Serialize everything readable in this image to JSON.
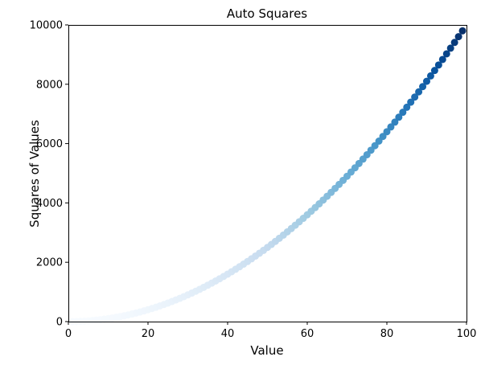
{
  "chart_data": {
    "type": "scatter",
    "title": "Auto Squares",
    "xlabel": "Value",
    "ylabel": "Squares of Values",
    "xlim": [
      0,
      100
    ],
    "ylim": [
      0,
      10000
    ],
    "x_ticks": [
      0,
      20,
      40,
      60,
      80,
      100
    ],
    "y_ticks": [
      0,
      2000,
      4000,
      6000,
      8000,
      10000
    ],
    "grid": false,
    "colormap": "Blues",
    "colormap_light": "#f7fbff",
    "colormap_dark": "#08306b",
    "colors_by": "y",
    "x": [
      1,
      2,
      3,
      4,
      5,
      6,
      7,
      8,
      9,
      10,
      11,
      12,
      13,
      14,
      15,
      16,
      17,
      18,
      19,
      20,
      21,
      22,
      23,
      24,
      25,
      26,
      27,
      28,
      29,
      30,
      31,
      32,
      33,
      34,
      35,
      36,
      37,
      38,
      39,
      40,
      41,
      42,
      43,
      44,
      45,
      46,
      47,
      48,
      49,
      50,
      51,
      52,
      53,
      54,
      55,
      56,
      57,
      58,
      59,
      60,
      61,
      62,
      63,
      64,
      65,
      66,
      67,
      68,
      69,
      70,
      71,
      72,
      73,
      74,
      75,
      76,
      77,
      78,
      79,
      80,
      81,
      82,
      83,
      84,
      85,
      86,
      87,
      88,
      89,
      90,
      91,
      92,
      93,
      94,
      95,
      96,
      97,
      98,
      99
    ],
    "y": [
      1,
      4,
      9,
      16,
      25,
      36,
      49,
      64,
      81,
      100,
      121,
      144,
      169,
      196,
      225,
      256,
      289,
      324,
      361,
      400,
      441,
      484,
      529,
      576,
      625,
      676,
      729,
      784,
      841,
      900,
      961,
      1024,
      1089,
      1156,
      1225,
      1296,
      1369,
      1444,
      1521,
      1600,
      1681,
      1764,
      1849,
      1936,
      2025,
      2116,
      2209,
      2304,
      2401,
      2500,
      2601,
      2704,
      2809,
      2916,
      3025,
      3136,
      3249,
      3364,
      3481,
      3600,
      3721,
      3844,
      3969,
      4096,
      4225,
      4356,
      4489,
      4624,
      4761,
      4900,
      5041,
      5184,
      5329,
      5476,
      5625,
      5776,
      5929,
      6084,
      6241,
      6400,
      6561,
      6724,
      6889,
      7056,
      7225,
      7396,
      7569,
      7744,
      7921,
      8100,
      8281,
      8464,
      8649,
      8836,
      9025,
      9216,
      9409,
      9604,
      9801
    ]
  }
}
